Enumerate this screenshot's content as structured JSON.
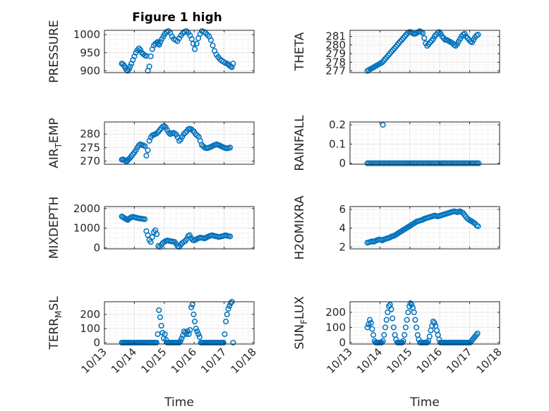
{
  "figure_title": "Figure 1 high",
  "marker_color": "#0072BD",
  "chart_data": [
    {
      "type": "scatter",
      "ylabel": "PRESSURE",
      "title": "Figure 1 high",
      "yticks": [
        900,
        950,
        1000
      ],
      "ylim": [
        895,
        1012
      ],
      "xlim": [
        0,
        5
      ],
      "show_xticks": false,
      "x": [
        0.58,
        0.62,
        0.66,
        0.7,
        0.74,
        0.78,
        0.82,
        0.86,
        0.9,
        0.95,
        1.0,
        1.05,
        1.1,
        1.15,
        1.2,
        1.25,
        1.3,
        1.35,
        1.4,
        1.45,
        1.5,
        1.55,
        1.6,
        1.65,
        1.7,
        1.75,
        1.78,
        1.8,
        1.83,
        1.87,
        1.92,
        1.97,
        2.02,
        2.08,
        2.14,
        2.2,
        2.26,
        2.32,
        2.38,
        2.44,
        2.5,
        2.56,
        2.62,
        2.68,
        2.74,
        2.8,
        2.86,
        2.92,
        2.97,
        3.02,
        3.08,
        3.14,
        3.2,
        3.26,
        3.32,
        3.38,
        3.44,
        3.5,
        3.56,
        3.62,
        3.68,
        3.74,
        3.8,
        3.86,
        3.92,
        3.98,
        4.04,
        4.1,
        4.14,
        4.18,
        4.22,
        4.26,
        4.3
      ],
      "y": [
        920,
        918,
        914,
        908,
        902,
        900,
        905,
        912,
        920,
        930,
        940,
        950,
        957,
        962,
        958,
        950,
        946,
        943,
        941,
        900,
        912,
        940,
        960,
        970,
        975,
        978,
        980,
        975,
        972,
        980,
        988,
        995,
        1002,
        1008,
        1010,
        1005,
        995,
        988,
        985,
        982,
        990,
        998,
        1004,
        1008,
        1010,
        1005,
        998,
        988,
        975,
        960,
        975,
        990,
        1002,
        1010,
        1008,
        1005,
        1000,
        995,
        985,
        970,
        955,
        945,
        938,
        932,
        928,
        925,
        922,
        920,
        918,
        915,
        912,
        910,
        920
      ]
    },
    {
      "type": "scatter",
      "ylabel": "THETA",
      "yticks": [
        277,
        278,
        279,
        280,
        281
      ],
      "ylim": [
        276.8,
        281.7
      ],
      "xlim": [
        0,
        5
      ],
      "show_xticks": false,
      "x": [
        0.58,
        0.63,
        0.68,
        0.73,
        0.78,
        0.83,
        0.88,
        0.93,
        0.98,
        1.03,
        1.08,
        1.13,
        1.18,
        1.23,
        1.28,
        1.33,
        1.38,
        1.43,
        1.48,
        1.53,
        1.58,
        1.63,
        1.68,
        1.73,
        1.78,
        1.83,
        1.88,
        1.93,
        1.98,
        2.03,
        2.08,
        2.13,
        2.18,
        2.23,
        2.28,
        2.33,
        2.38,
        2.43,
        2.48,
        2.53,
        2.58,
        2.63,
        2.68,
        2.73,
        2.78,
        2.83,
        2.88,
        2.93,
        2.98,
        3.03,
        3.08,
        3.13,
        3.18,
        3.23,
        3.28,
        3.33,
        3.38,
        3.43,
        3.48,
        3.53,
        3.58,
        3.63,
        3.68,
        3.73,
        3.78,
        3.83,
        3.88,
        3.93,
        3.98,
        4.03,
        4.08,
        4.13,
        4.18,
        4.23,
        4.28
      ],
      "y": [
        277.0,
        277.1,
        277.2,
        277.3,
        277.4,
        277.5,
        277.6,
        277.7,
        277.8,
        277.9,
        278.0,
        278.2,
        278.4,
        278.6,
        278.8,
        279.0,
        279.2,
        279.4,
        279.6,
        279.8,
        280.0,
        280.2,
        280.4,
        280.6,
        280.8,
        281.0,
        281.2,
        281.4,
        281.5,
        281.5,
        281.4,
        281.3,
        281.3,
        281.4,
        281.5,
        281.6,
        281.5,
        281.4,
        280.8,
        280.2,
        279.9,
        280.1,
        280.3,
        280.5,
        280.7,
        281.0,
        281.2,
        281.4,
        281.5,
        281.3,
        281.0,
        280.8,
        280.6,
        280.6,
        280.5,
        280.4,
        280.3,
        280.2,
        280.0,
        279.9,
        280.1,
        280.4,
        280.7,
        281.0,
        281.2,
        281.3,
        281.0,
        280.8,
        280.6,
        280.4,
        280.3,
        280.6,
        280.9,
        281.1,
        281.2
      ]
    },
    {
      "type": "scatter",
      "ylabel": "AIR_TEMP",
      "ylabel_main": "AIR",
      "ylabel_sub": "T",
      "ylabel_rest": "EMP",
      "yticks": [
        270,
        275,
        280
      ],
      "ylim": [
        268.8,
        284.5
      ],
      "xlim": [
        0,
        5
      ],
      "show_xticks": false,
      "x": [
        0.58,
        0.62,
        0.66,
        0.7,
        0.74,
        0.78,
        0.82,
        0.86,
        0.9,
        0.95,
        1.0,
        1.05,
        1.1,
        1.15,
        1.2,
        1.25,
        1.3,
        1.35,
        1.4,
        1.45,
        1.5,
        1.55,
        1.6,
        1.65,
        1.7,
        1.75,
        1.8,
        1.85,
        1.9,
        1.95,
        2.0,
        2.05,
        2.1,
        2.15,
        2.2,
        2.25,
        2.3,
        2.35,
        2.4,
        2.45,
        2.5,
        2.55,
        2.6,
        2.65,
        2.7,
        2.75,
        2.8,
        2.85,
        2.9,
        2.95,
        3.0,
        3.05,
        3.1,
        3.15,
        3.2,
        3.25,
        3.3,
        3.35,
        3.4,
        3.45,
        3.5,
        3.55,
        3.6,
        3.65,
        3.7,
        3.75,
        3.8,
        3.85,
        3.9,
        3.95,
        4.0,
        4.05,
        4.1,
        4.15,
        4.2
      ],
      "y": [
        270.5,
        270.6,
        270.4,
        270.0,
        269.8,
        270.3,
        270.8,
        271.2,
        271.8,
        272.5,
        273.2,
        274.0,
        275.0,
        275.8,
        276.2,
        276.0,
        275.8,
        275.5,
        272.0,
        274.0,
        277.5,
        278.8,
        279.5,
        279.8,
        280.0,
        280.3,
        280.8,
        281.5,
        282.2,
        282.8,
        283.0,
        282.5,
        281.5,
        280.5,
        280.0,
        280.3,
        280.5,
        280.2,
        279.8,
        278.8,
        277.5,
        278.0,
        279.0,
        280.0,
        280.5,
        281.0,
        281.8,
        282.0,
        281.8,
        281.3,
        280.8,
        280.0,
        279.5,
        279.0,
        277.5,
        276.0,
        275.5,
        275.0,
        274.8,
        274.8,
        275.0,
        275.2,
        275.5,
        275.8,
        276.0,
        276.2,
        276.0,
        275.8,
        275.5,
        275.2,
        275.0,
        274.8,
        274.7,
        274.8,
        275.0
      ]
    },
    {
      "type": "scatter",
      "ylabel": "RAINFALL",
      "yticks": [
        0,
        0.1,
        0.2
      ],
      "ytick_labels": [
        "0",
        "0.1",
        "0.2"
      ],
      "ylim": [
        -0.005,
        0.215
      ],
      "xlim": [
        0,
        5
      ],
      "show_xticks": false,
      "x_start": 0.58,
      "x_end": 4.3,
      "count": 75,
      "baseline": 0,
      "spike_x": 1.1,
      "spike_y": 0.2
    },
    {
      "type": "scatter",
      "ylabel": "MIXDEPTH",
      "yticks": [
        0,
        1000,
        2000
      ],
      "ylim": [
        -50,
        2100
      ],
      "xlim": [
        0,
        5
      ],
      "show_xticks": false,
      "x": [
        0.58,
        0.62,
        0.66,
        0.7,
        0.74,
        0.78,
        0.82,
        0.86,
        0.9,
        0.95,
        1.0,
        1.05,
        1.1,
        1.15,
        1.2,
        1.25,
        1.3,
        1.35,
        1.4,
        1.45,
        1.5,
        1.55,
        1.6,
        1.65,
        1.7,
        1.75,
        1.8,
        1.85,
        1.9,
        1.95,
        2.0,
        2.05,
        2.1,
        2.15,
        2.2,
        2.25,
        2.3,
        2.35,
        2.4,
        2.45,
        2.5,
        2.55,
        2.6,
        2.65,
        2.7,
        2.75,
        2.8,
        2.85,
        2.9,
        2.95,
        3.0,
        3.05,
        3.1,
        3.15,
        3.2,
        3.25,
        3.3,
        3.35,
        3.4,
        3.45,
        3.5,
        3.55,
        3.6,
        3.65,
        3.7,
        3.75,
        3.8,
        3.85,
        3.9,
        3.95,
        4.0,
        4.05,
        4.1,
        4.15,
        4.2
      ],
      "y": [
        1600,
        1560,
        1520,
        1480,
        1450,
        1420,
        1480,
        1520,
        1560,
        1580,
        1560,
        1540,
        1520,
        1500,
        1490,
        1480,
        1470,
        1460,
        850,
        650,
        400,
        300,
        550,
        800,
        900,
        700,
        100,
        50,
        150,
        250,
        300,
        350,
        380,
        360,
        340,
        330,
        320,
        300,
        200,
        80,
        50,
        150,
        250,
        300,
        350,
        450,
        600,
        650,
        500,
        400,
        380,
        420,
        460,
        500,
        520,
        510,
        500,
        480,
        520,
        560,
        600,
        620,
        640,
        620,
        600,
        580,
        560,
        560,
        580,
        600,
        620,
        640,
        620,
        600,
        580
      ]
    },
    {
      "type": "scatter",
      "ylabel": "H2OMIXRA",
      "yticks": [
        2,
        4,
        6
      ],
      "ylim": [
        1.8,
        6.3
      ],
      "xlim": [
        0,
        5
      ],
      "show_xticks": false,
      "x": [
        0.58,
        0.63,
        0.68,
        0.73,
        0.78,
        0.83,
        0.88,
        0.93,
        0.98,
        1.03,
        1.08,
        1.13,
        1.18,
        1.23,
        1.28,
        1.33,
        1.38,
        1.43,
        1.48,
        1.53,
        1.58,
        1.63,
        1.68,
        1.73,
        1.78,
        1.83,
        1.88,
        1.93,
        1.98,
        2.03,
        2.08,
        2.13,
        2.18,
        2.23,
        2.28,
        2.33,
        2.38,
        2.43,
        2.48,
        2.53,
        2.58,
        2.63,
        2.68,
        2.73,
        2.78,
        2.83,
        2.88,
        2.93,
        2.98,
        3.03,
        3.08,
        3.13,
        3.18,
        3.23,
        3.28,
        3.33,
        3.38,
        3.43,
        3.48,
        3.53,
        3.58,
        3.63,
        3.68,
        3.73,
        3.78,
        3.83,
        3.88,
        3.93,
        3.98,
        4.03,
        4.08,
        4.13,
        4.18,
        4.23,
        4.28
      ],
      "y": [
        2.45,
        2.5,
        2.55,
        2.6,
        2.55,
        2.6,
        2.7,
        2.75,
        2.8,
        2.75,
        2.7,
        2.8,
        2.85,
        2.9,
        2.95,
        3.0,
        3.1,
        3.15,
        3.2,
        3.3,
        3.4,
        3.5,
        3.6,
        3.7,
        3.8,
        3.9,
        4.0,
        4.1,
        4.2,
        4.3,
        4.4,
        4.5,
        4.6,
        4.7,
        4.75,
        4.8,
        4.85,
        4.9,
        5.0,
        5.05,
        5.1,
        5.15,
        5.2,
        5.25,
        5.3,
        5.35,
        5.3,
        5.25,
        5.3,
        5.35,
        5.4,
        5.45,
        5.5,
        5.55,
        5.6,
        5.65,
        5.7,
        5.75,
        5.8,
        5.75,
        5.7,
        5.75,
        5.8,
        5.7,
        5.6,
        5.4,
        5.2,
        5.0,
        4.9,
        4.8,
        4.7,
        4.6,
        4.5,
        4.3,
        4.2
      ]
    },
    {
      "type": "scatter",
      "ylabel": "TERR_MSL",
      "ylabel_main": "TERR",
      "ylabel_sub": "M",
      "ylabel_rest": "SL",
      "yticks": [
        0,
        100,
        200
      ],
      "ylim": [
        -10,
        290
      ],
      "xlim": [
        0,
        5
      ],
      "show_xticks": true,
      "xtick_values": [
        0,
        1,
        2,
        3,
        4,
        5
      ],
      "xtick_labels": [
        "10/13",
        "10/14",
        "10/15",
        "10/16",
        "10/17",
        "10/18"
      ],
      "xlabel": "Time",
      "x": [
        0.58,
        0.62,
        0.66,
        0.7,
        0.74,
        0.78,
        0.82,
        0.86,
        0.9,
        0.94,
        0.98,
        1.02,
        1.06,
        1.1,
        1.14,
        1.18,
        1.22,
        1.26,
        1.3,
        1.34,
        1.38,
        1.42,
        1.46,
        1.5,
        1.54,
        1.58,
        1.62,
        1.66,
        1.7,
        1.74,
        1.78,
        1.82,
        1.86,
        1.9,
        1.94,
        1.98,
        2.02,
        2.06,
        2.1,
        2.14,
        2.18,
        2.22,
        2.26,
        2.3,
        2.34,
        2.38,
        2.42,
        2.46,
        2.5,
        2.54,
        2.58,
        2.62,
        2.66,
        2.7,
        2.74,
        2.78,
        2.82,
        2.86,
        2.9,
        2.94,
        2.98,
        3.02,
        3.06,
        3.1,
        3.14,
        3.18,
        3.22,
        3.26,
        3.3,
        3.34,
        3.38,
        3.42,
        3.46,
        3.5,
        3.54,
        3.58,
        3.62,
        3.66,
        3.7,
        3.74,
        3.78,
        3.82,
        3.86,
        3.9,
        3.94,
        3.98,
        4.02,
        4.06,
        4.1,
        4.14,
        4.18,
        4.22,
        4.26,
        4.3
      ],
      "y": [
        0,
        0,
        0,
        0,
        0,
        0,
        0,
        0,
        0,
        0,
        0,
        0,
        0,
        0,
        0,
        0,
        0,
        0,
        0,
        0,
        0,
        0,
        0,
        0,
        0,
        0,
        0,
        0,
        0,
        0,
        60,
        230,
        180,
        120,
        70,
        30,
        60,
        20,
        0,
        0,
        0,
        0,
        0,
        0,
        0,
        0,
        0,
        0,
        0,
        10,
        30,
        50,
        80,
        70,
        60,
        80,
        60,
        90,
        250,
        270,
        200,
        150,
        100,
        80,
        60,
        40,
        0,
        0,
        0,
        0,
        0,
        0,
        0,
        0,
        0,
        0,
        0,
        0,
        0,
        0,
        0,
        0,
        0,
        0,
        0,
        0,
        60,
        150,
        200,
        240,
        260,
        280,
        290,
        0
      ]
    },
    {
      "type": "scatter",
      "ylabel": "SUN_FLUX",
      "ylabel_main": "SUN",
      "ylabel_sub": "F",
      "ylabel_rest": "LUX",
      "yticks": [
        0,
        100,
        200
      ],
      "ylim": [
        -10,
        270
      ],
      "xlim": [
        0,
        5
      ],
      "show_xticks": true,
      "xtick_values": [
        0,
        1,
        2,
        3,
        4,
        5
      ],
      "xtick_labels": [
        "10/13",
        "10/14",
        "10/15",
        "10/16",
        "10/17",
        "10/18"
      ],
      "xlabel": "Time",
      "x": [
        0.58,
        0.62,
        0.66,
        0.7,
        0.74,
        0.78,
        0.82,
        0.86,
        0.9,
        0.94,
        0.98,
        1.02,
        1.06,
        1.1,
        1.14,
        1.18,
        1.22,
        1.26,
        1.3,
        1.34,
        1.38,
        1.42,
        1.46,
        1.5,
        1.54,
        1.58,
        1.62,
        1.66,
        1.7,
        1.74,
        1.78,
        1.82,
        1.86,
        1.9,
        1.94,
        1.98,
        2.02,
        2.06,
        2.1,
        2.14,
        2.18,
        2.22,
        2.26,
        2.3,
        2.34,
        2.38,
        2.42,
        2.46,
        2.5,
        2.54,
        2.58,
        2.62,
        2.66,
        2.7,
        2.74,
        2.78,
        2.82,
        2.86,
        2.9,
        2.94,
        2.98,
        3.02,
        3.06,
        3.1,
        3.14,
        3.18,
        3.22,
        3.26,
        3.3,
        3.34,
        3.38,
        3.42,
        3.46,
        3.5,
        3.54,
        3.58,
        3.62,
        3.66,
        3.7,
        3.74,
        3.78,
        3.82,
        3.86,
        3.9,
        3.94,
        3.98,
        4.02,
        4.06,
        4.1,
        4.14,
        4.18,
        4.22,
        4.26
      ],
      "y": [
        100,
        120,
        150,
        130,
        90,
        50,
        10,
        0,
        0,
        0,
        0,
        0,
        0,
        10,
        50,
        100,
        150,
        200,
        240,
        250,
        220,
        160,
        100,
        50,
        20,
        0,
        0,
        0,
        0,
        0,
        10,
        50,
        100,
        150,
        200,
        240,
        260,
        250,
        230,
        200,
        150,
        100,
        50,
        20,
        0,
        0,
        0,
        0,
        0,
        0,
        0,
        10,
        40,
        80,
        110,
        140,
        130,
        110,
        80,
        50,
        20,
        0,
        0,
        0,
        0,
        0,
        0,
        0,
        0,
        0,
        0,
        0,
        0,
        0,
        0,
        0,
        0,
        0,
        0,
        0,
        0,
        0,
        0,
        0,
        0,
        0,
        0,
        10,
        20,
        30,
        40,
        50,
        60
      ]
    }
  ]
}
